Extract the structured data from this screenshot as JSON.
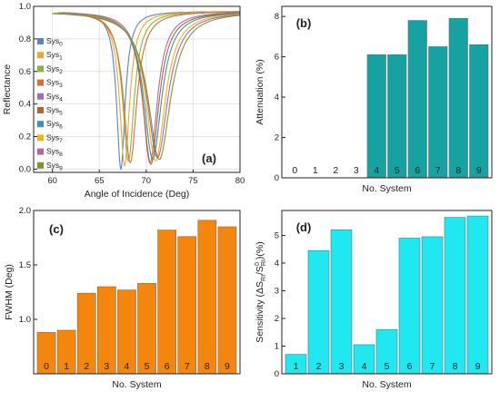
{
  "chart_data": [
    {
      "panel": "(a)",
      "type": "line",
      "xlabel": "Angle of Incidence (Deg)",
      "ylabel": "Reflectance",
      "xlim": [
        58,
        80
      ],
      "ylim": [
        -0.02,
        1.0
      ],
      "x_ticks": [
        "60",
        "65",
        "70",
        "75",
        "80"
      ],
      "y_ticks": [
        "0.0",
        "0.2",
        "0.4",
        "0.6",
        "0.8",
        "1.0"
      ],
      "grid": true,
      "legend": "left",
      "baseline": 0.97,
      "series": [
        {
          "name": "Sys",
          "subscript": "0",
          "color": "#5b84c4",
          "dip_angle": 67.3,
          "min_reflectance": 0.0
        },
        {
          "name": "Sys",
          "subscript": "1",
          "color": "#f0a830",
          "dip_angle": 67.7,
          "min_reflectance": 0.02
        },
        {
          "name": "Sys",
          "subscript": "2",
          "color": "#8cb43c",
          "dip_angle": 68.1,
          "min_reflectance": 0.05
        },
        {
          "name": "Sys",
          "subscript": "3",
          "color": "#e06c2c",
          "dip_angle": 68.3,
          "min_reflectance": 0.04
        },
        {
          "name": "Sys",
          "subscript": "4",
          "color": "#9c70b8",
          "dip_angle": 70.4,
          "min_reflectance": 0.04
        },
        {
          "name": "Sys",
          "subscript": "5",
          "color": "#b46428",
          "dip_angle": 70.5,
          "min_reflectance": 0.03
        },
        {
          "name": "Sys",
          "subscript": "6",
          "color": "#3c90c4",
          "dip_angle": 70.7,
          "min_reflectance": 0.06
        },
        {
          "name": "Sys",
          "subscript": "7",
          "color": "#e8b810",
          "dip_angle": 71.0,
          "min_reflectance": 0.05
        },
        {
          "name": "Sys",
          "subscript": "8",
          "color": "#c060a0",
          "dip_angle": 71.2,
          "min_reflectance": 0.07
        },
        {
          "name": "Sys",
          "subscript": "9",
          "color": "#7a9a28",
          "dip_angle": 71.4,
          "min_reflectance": 0.06
        }
      ]
    },
    {
      "panel": "(b)",
      "type": "bar",
      "xlabel": "No. System",
      "ylabel": "Attenuation (%)",
      "categories": [
        "0",
        "1",
        "2",
        "3",
        "4",
        "5",
        "6",
        "7",
        "8",
        "9"
      ],
      "values": [
        0,
        0,
        0,
        0,
        6.1,
        6.1,
        7.8,
        6.5,
        7.9,
        6.6
      ],
      "ylim": [
        0,
        8.5
      ],
      "y_ticks": [
        "0",
        "2",
        "4",
        "6",
        "8"
      ],
      "bar_color": "#17a2a2"
    },
    {
      "panel": "(c)",
      "type": "bar",
      "xlabel": "No. System",
      "ylabel": "FWHM (Deg)",
      "categories": [
        "0",
        "1",
        "2",
        "3",
        "4",
        "5",
        "6",
        "7",
        "8",
        "9"
      ],
      "values": [
        0.88,
        0.9,
        1.24,
        1.3,
        1.27,
        1.33,
        1.82,
        1.76,
        1.91,
        1.85
      ],
      "ylim": [
        0.5,
        2.0
      ],
      "y_ticks": [
        "1.0",
        "1.5",
        "2.0"
      ],
      "bar_color": "#f5860d"
    },
    {
      "panel": "(d)",
      "type": "bar",
      "xlabel": "No. System",
      "ylabel": "Sensitivity (ΔS_RI/S_RI^0)(%)",
      "ylabel_parts": [
        "Sensitivity (ΔS",
        "RI",
        "/",
        "S",
        "0",
        "RI",
        ")(%)"
      ],
      "categories": [
        "1",
        "2",
        "3",
        "4",
        "5",
        "6",
        "7",
        "8",
        "9"
      ],
      "values": [
        0.7,
        4.45,
        5.2,
        1.05,
        1.6,
        4.9,
        4.95,
        5.65,
        5.7
      ],
      "ylim": [
        0,
        5.9
      ],
      "y_ticks": [
        "0",
        "1",
        "2",
        "3",
        "4",
        "5"
      ],
      "bar_color": "#1fe8f0"
    }
  ]
}
